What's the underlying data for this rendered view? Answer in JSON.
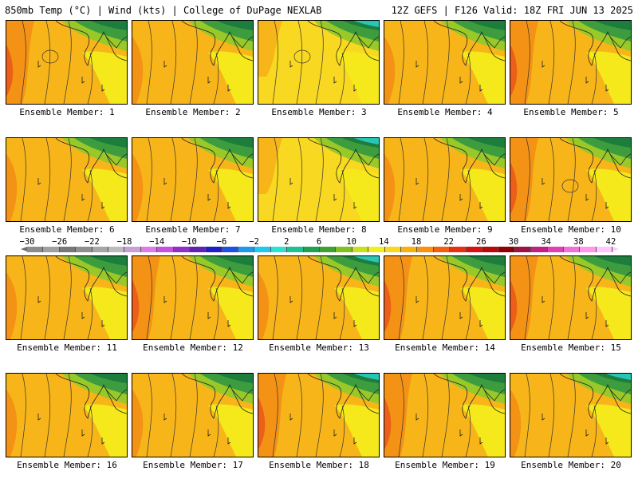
{
  "header": {
    "left": "850mb Temp (°C) | Wind (kts) | College of DuPage NEXLAB",
    "right": "12Z GEFS | F126 Valid: 18Z FRI JUN 13 2025"
  },
  "panels": [
    {
      "label": "Ensemble Member: 1",
      "style": 0
    },
    {
      "label": "Ensemble Member: 2",
      "style": 1
    },
    {
      "label": "Ensemble Member: 3",
      "style": 2
    },
    {
      "label": "Ensemble Member: 4",
      "style": 1
    },
    {
      "label": "Ensemble Member: 5",
      "style": 0
    },
    {
      "label": "Ensemble Member: 6",
      "style": 1
    },
    {
      "label": "Ensemble Member: 7",
      "style": 1
    },
    {
      "label": "Ensemble Member: 8",
      "style": 2
    },
    {
      "label": "Ensemble Member: 9",
      "style": 1
    },
    {
      "label": "Ensemble Member: 10",
      "style": 0
    },
    {
      "label": "Ensemble Member: 11",
      "style": 1
    },
    {
      "label": "Ensemble Member: 12",
      "style": 0
    },
    {
      "label": "Ensemble Member: 13",
      "style": 1
    },
    {
      "label": "Ensemble Member: 14",
      "style": 0
    },
    {
      "label": "Ensemble Member: 15",
      "style": 0
    },
    {
      "label": "Ensemble Member: 16",
      "style": 1
    },
    {
      "label": "Ensemble Member: 17",
      "style": 1
    },
    {
      "label": "Ensemble Member: 18",
      "style": 0
    },
    {
      "label": "Ensemble Member: 19",
      "style": 0
    },
    {
      "label": "Ensemble Member: 20",
      "style": 1
    }
  ],
  "colorbar": {
    "ticks": [
      "−30",
      "−26",
      "−22",
      "−18",
      "−14",
      "−10",
      "−6",
      "−2",
      "2",
      "6",
      "10",
      "14",
      "18",
      "22",
      "26",
      "30",
      "34",
      "38",
      "42"
    ],
    "colors": [
      "#8c8c8c",
      "#a0a0a0",
      "#787878",
      "#8f8f8f",
      "#a6a6a6",
      "#bcbcbc",
      "#c8a0d8",
      "#e07ae8",
      "#c850e0",
      "#9030c8",
      "#6020b0",
      "#2020c0",
      "#2050e0",
      "#2098f0",
      "#20c8f0",
      "#30e0d0",
      "#20c090",
      "#20a050",
      "#40a030",
      "#80c020",
      "#c8e020",
      "#f0f020",
      "#f8d820",
      "#f8b010",
      "#f89010",
      "#f06010",
      "#e83010",
      "#d81010",
      "#b80808",
      "#900000",
      "#a01040",
      "#c02080",
      "#e040b0",
      "#f070d8",
      "#ff98e8",
      "#ffc8ff"
    ]
  },
  "palette": {
    "pale_yellow": "#f5e91b",
    "yellow": "#f8d820",
    "orange": "#f7b519",
    "dark_orange": "#f39215",
    "red_orange": "#ec5f19",
    "green_light": "#99c829",
    "green": "#3d9d3e",
    "dark_green": "#1d7d3c",
    "teal": "#28c6b4"
  }
}
